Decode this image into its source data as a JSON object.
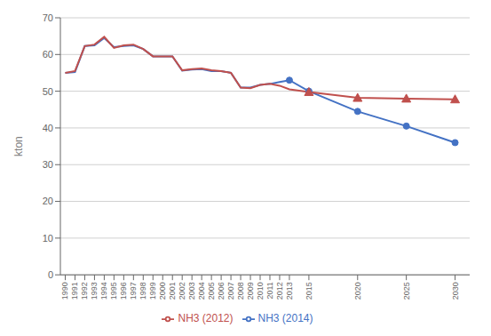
{
  "chart_data": {
    "type": "line",
    "ylabel": "kton",
    "x": [
      1990,
      1991,
      1992,
      1993,
      1994,
      1995,
      1996,
      1997,
      1998,
      1999,
      2000,
      2001,
      2002,
      2003,
      2004,
      2005,
      2006,
      2007,
      2008,
      2009,
      2010,
      2011,
      2012,
      2013,
      2015,
      2020,
      2025,
      2030
    ],
    "series": [
      {
        "name": "NH3 (2014)",
        "color": "#4472C4",
        "marker": "circle",
        "marker_x": [
          2013,
          2015,
          2020,
          2025,
          2030
        ],
        "values": [
          55.0,
          55.2,
          62.3,
          62.5,
          64.5,
          62.0,
          62.3,
          62.5,
          61.5,
          59.5,
          59.5,
          59.5,
          55.6,
          55.9,
          56.0,
          55.5,
          55.5,
          55.0,
          51.0,
          51.0,
          51.7,
          52.0,
          52.5,
          53.0,
          50.0,
          44.5,
          40.5,
          36.0
        ]
      },
      {
        "name": "NH3 (2012)",
        "color": "#C0504D",
        "marker": "triangle",
        "marker_x": [
          2015,
          2020,
          2025,
          2030
        ],
        "values": [
          55.0,
          55.5,
          62.3,
          62.7,
          64.8,
          61.8,
          62.5,
          62.7,
          61.5,
          59.5,
          59.5,
          59.5,
          55.7,
          56.0,
          56.2,
          55.7,
          55.5,
          55.0,
          51.0,
          50.8,
          51.7,
          52.0,
          51.5,
          50.5,
          49.8,
          48.2,
          48.0,
          47.8
        ]
      }
    ],
    "xlim": [
      1989.5,
      2031.5
    ],
    "xticks": [
      1990,
      1991,
      1992,
      1993,
      1994,
      1995,
      1996,
      1997,
      1998,
      1999,
      2000,
      2001,
      2002,
      2003,
      2004,
      2005,
      2006,
      2007,
      2008,
      2009,
      2010,
      2011,
      2012,
      2013,
      2015,
      2020,
      2025,
      2030
    ],
    "ylim": [
      0,
      70
    ],
    "yticks": [
      0,
      10,
      20,
      30,
      40,
      50,
      60,
      70
    ],
    "grid": "y",
    "legend": "bottom"
  }
}
